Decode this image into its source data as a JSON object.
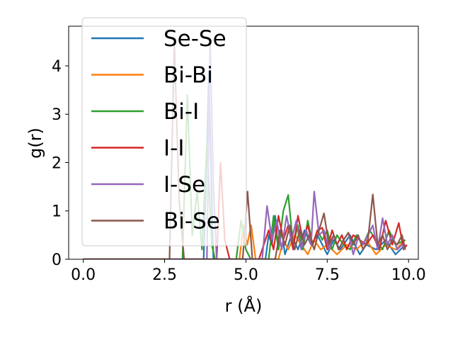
{
  "chart_data": {
    "type": "line",
    "title": "",
    "xlabel": "r (Å)",
    "ylabel": "g(r)",
    "xlim": [
      -0.45,
      10.3
    ],
    "ylim": [
      0,
      4.82
    ],
    "xticks": [
      0.0,
      2.5,
      5.0,
      7.5,
      10.0
    ],
    "xtick_labels": [
      "0.0",
      "2.5",
      "5.0",
      "7.5",
      "10.0"
    ],
    "yticks": [
      0,
      1,
      2,
      3,
      4
    ],
    "ytick_labels": [
      "0",
      "1",
      "2",
      "3",
      "4"
    ],
    "grid": false,
    "legend_position": "upper-left",
    "series": [
      {
        "name": "Se-Se",
        "color": "#1f77b4",
        "x": [
          0.0,
          3.7,
          3.78,
          3.86,
          3.94,
          4.0,
          5.6,
          5.7,
          5.8,
          5.9,
          6.0,
          6.1,
          6.2,
          6.4,
          6.6,
          6.8,
          7.0,
          7.2,
          7.5,
          7.7,
          7.9,
          8.2,
          8.5,
          8.7,
          9.0,
          9.3,
          9.6,
          9.9
        ],
        "y": [
          0,
          0,
          1.8,
          3.9,
          1.5,
          0,
          0,
          0.5,
          0.3,
          0.9,
          0.2,
          0.6,
          0.1,
          0.5,
          0.2,
          0.6,
          0.3,
          0.5,
          0.1,
          0.4,
          0.2,
          0.5,
          0.1,
          0.3,
          0.2,
          0.4,
          0.1,
          0.3
        ]
      },
      {
        "name": "Bi-Bi",
        "color": "#ff7f0e",
        "x": [
          0.0,
          4.8,
          4.92,
          5.04,
          5.16,
          5.3,
          6.0,
          6.15,
          6.3,
          6.5,
          6.7,
          6.9,
          7.1,
          7.3,
          7.5,
          7.8,
          8.1,
          8.4,
          8.7,
          9.0,
          9.3,
          9.6,
          9.9
        ],
        "y": [
          0,
          0,
          0.7,
          0.3,
          0.7,
          0,
          0,
          0.4,
          0.2,
          0.5,
          0.3,
          0.1,
          0.4,
          0.2,
          0.3,
          0.1,
          0.3,
          0.2,
          0.4,
          0.1,
          0.3,
          0.2,
          0.4
        ]
      },
      {
        "name": "Bi-I",
        "color": "#2ca02c",
        "x": [
          0.0,
          3.05,
          3.2,
          3.35,
          3.5,
          3.65,
          3.8,
          3.95,
          4.05,
          4.7,
          4.85,
          5.0,
          5.15,
          5.7,
          5.85,
          6.0,
          6.15,
          6.3,
          6.45,
          6.6,
          6.75,
          6.9,
          7.05,
          7.2,
          7.35,
          7.5,
          7.65,
          7.8,
          8.0,
          8.2,
          8.4,
          8.6,
          8.8,
          9.0,
          9.2,
          9.4,
          9.6,
          9.9
        ],
        "y": [
          0,
          0,
          3.4,
          0.5,
          1.4,
          0.2,
          2.4,
          0.3,
          0,
          0,
          0.8,
          0.2,
          0,
          0,
          0.9,
          0.2,
          1.0,
          1.33,
          0.3,
          0.7,
          0.2,
          0.8,
          0.3,
          0.6,
          0.4,
          0.6,
          0.2,
          0.5,
          0.3,
          0.2,
          0.5,
          0.3,
          0.6,
          0.4,
          0.2,
          0.6,
          0.3,
          0.4
        ]
      },
      {
        "name": "I-I",
        "color": "#d62728",
        "x": [
          0.0,
          4.1,
          4.22,
          4.35,
          4.5,
          5.4,
          5.55,
          5.7,
          5.85,
          6.0,
          6.15,
          6.3,
          6.45,
          6.6,
          6.75,
          6.9,
          7.05,
          7.2,
          7.35,
          7.5,
          7.65,
          7.8,
          7.95,
          8.1,
          8.3,
          8.5,
          8.7,
          8.9,
          9.1,
          9.3,
          9.5,
          9.7,
          9.85,
          9.95
        ],
        "y": [
          0,
          0,
          2.0,
          0.4,
          0,
          0,
          0.3,
          0.6,
          0.2,
          0.9,
          0.4,
          0.7,
          0.2,
          0.9,
          0.4,
          0.7,
          0.3,
          0.6,
          0.65,
          0.2,
          0.6,
          0.3,
          0.5,
          0.2,
          0.5,
          0.4,
          0.3,
          0.5,
          0.2,
          0.8,
          0.3,
          0.75,
          0.2,
          0.3
        ]
      },
      {
        "name": "I-Se",
        "color": "#9467bd",
        "x": [
          0.0,
          3.8,
          3.9,
          4.0,
          4.1,
          5.5,
          5.65,
          5.8,
          5.95,
          6.1,
          6.25,
          6.4,
          6.55,
          6.7,
          6.85,
          7.0,
          7.1,
          7.25,
          7.4,
          7.55,
          7.7,
          7.85,
          8.0,
          8.15,
          8.3,
          8.45,
          8.6,
          8.75,
          8.9,
          9.05,
          9.2,
          9.35,
          9.5,
          9.65,
          9.8,
          9.9
        ],
        "y": [
          0,
          0,
          4.5,
          1.5,
          0,
          0,
          1.1,
          0.4,
          0.8,
          0.2,
          0.9,
          0.4,
          0.8,
          0.2,
          0.6,
          0.3,
          1.4,
          0.5,
          0.6,
          0.2,
          0.5,
          0.2,
          0.4,
          0.55,
          0.1,
          0.45,
          0.3,
          0.5,
          0.7,
          0.2,
          0.85,
          0.3,
          0.5,
          0.2,
          0.3,
          0.2
        ]
      },
      {
        "name": "Bi-Se",
        "color": "#8c564b",
        "x": [
          0.0,
          2.65,
          2.8,
          2.95,
          3.1,
          4.9,
          5.05,
          5.2,
          5.9,
          6.05,
          6.2,
          6.35,
          6.5,
          6.65,
          6.8,
          6.95,
          7.1,
          7.25,
          7.4,
          7.55,
          7.7,
          7.85,
          8.0,
          8.15,
          8.3,
          8.45,
          8.6,
          8.75,
          8.9,
          9.05,
          9.2,
          9.35,
          9.5,
          9.65,
          9.8,
          9.9
        ],
        "y": [
          0,
          0,
          4.45,
          1.2,
          0,
          0,
          1.4,
          0,
          0,
          0.6,
          0.3,
          0.7,
          0.2,
          0.6,
          0.3,
          0.5,
          0.2,
          0.6,
          0.95,
          0.3,
          0.5,
          0.2,
          0.4,
          0.55,
          0.3,
          0.5,
          0.2,
          0.4,
          1.34,
          0.3,
          0.5,
          0.2,
          0.4,
          0.3,
          0.5,
          0.2
        ]
      }
    ]
  }
}
